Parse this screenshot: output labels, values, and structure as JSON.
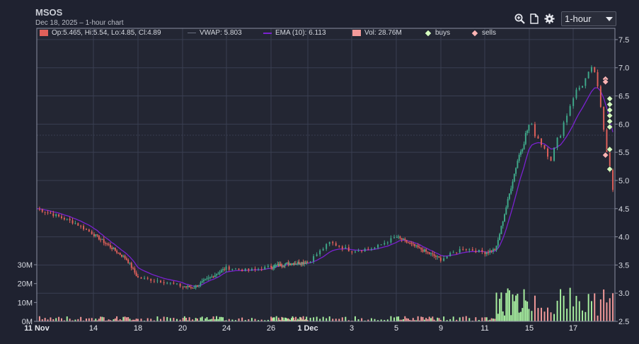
{
  "header": {
    "title": "MSOS",
    "subtitle": "Dec 18, 2025 – 1-hour chart"
  },
  "toolbar": {
    "zoom_icon": "zoom-in-icon",
    "export_icon": "document-icon",
    "settings_icon": "gear-icon",
    "interval": {
      "selected": "1-hour",
      "options": [
        "1-hour"
      ]
    }
  },
  "legend": {
    "ohlc": "Op:5.465, Hi:5.54, Lo:4.85, Cl:4.89",
    "vwap": "VWAP: 5.803",
    "ema": "EMA (10): 6.113",
    "vol": "Vol: 28.76M",
    "buys": "buys",
    "sells": "sells"
  },
  "colors": {
    "background": "#1f2230",
    "plot_background": "#232633",
    "grid": "#3a3f52",
    "up": "#3fa98a",
    "down": "#e0605a",
    "ema": "#7a22d0",
    "vwap": "#3a3f52",
    "vol_up": "#a8f0a0",
    "vol_down": "#f49a9a",
    "buy_marker": "#d6ffbf",
    "sell_marker": "#ffb4b4"
  },
  "chart_data": {
    "type": "candlestick",
    "title": "MSOS",
    "subtitle": "Dec 18, 2025 – 1-hour chart",
    "price_axis": {
      "side": "right",
      "range": [
        2.5,
        7.7
      ],
      "ticks": [
        "7.5",
        "7.0",
        "6.5",
        "6.0",
        "5.5",
        "5.0",
        "4.5",
        "4.0",
        "3.5",
        "3.0",
        "2.5"
      ]
    },
    "volume_axis": {
      "side": "left",
      "range_millions": [
        0,
        36
      ],
      "ticks": [
        "30M",
        "20M",
        "10M",
        "0M"
      ]
    },
    "x_ticks": [
      {
        "label": "11 Nov",
        "date": "2025-11-11",
        "bold": true
      },
      {
        "label": "14",
        "date": "2025-11-14",
        "bold": false
      },
      {
        "label": "18",
        "date": "2025-11-18",
        "bold": false
      },
      {
        "label": "20",
        "date": "2025-11-20",
        "bold": false
      },
      {
        "label": "24",
        "date": "2025-11-24",
        "bold": false
      },
      {
        "label": "26",
        "date": "2025-11-26",
        "bold": false
      },
      {
        "label": "1 Dec",
        "date": "2025-12-01",
        "bold": true
      },
      {
        "label": "3",
        "date": "2025-12-03",
        "bold": false
      },
      {
        "label": "5",
        "date": "2025-12-05",
        "bold": false
      },
      {
        "label": "9",
        "date": "2025-12-09",
        "bold": false
      },
      {
        "label": "11",
        "date": "2025-12-11",
        "bold": false
      },
      {
        "label": "15",
        "date": "2025-12-15",
        "bold": false
      },
      {
        "label": "17",
        "date": "2025-12-17",
        "bold": false
      }
    ],
    "close_path": [
      {
        "date": "2025-11-11",
        "price": 4.5
      },
      {
        "date": "2025-11-12",
        "price": 4.38
      },
      {
        "date": "2025-11-13",
        "price": 4.25
      },
      {
        "date": "2025-11-14",
        "price": 4.05
      },
      {
        "date": "2025-11-17",
        "price": 3.6
      },
      {
        "date": "2025-11-18",
        "price": 3.27
      },
      {
        "date": "2025-11-19",
        "price": 3.22
      },
      {
        "date": "2025-11-20",
        "price": 3.12
      },
      {
        "date": "2025-11-21",
        "price": 3.1
      },
      {
        "date": "2025-11-24",
        "price": 3.45
      },
      {
        "date": "2025-11-25",
        "price": 3.4
      },
      {
        "date": "2025-11-26",
        "price": 3.47
      },
      {
        "date": "2025-11-28",
        "price": 3.52
      },
      {
        "date": "2025-12-01",
        "price": 3.55
      },
      {
        "date": "2025-12-02",
        "price": 3.9
      },
      {
        "date": "2025-12-03",
        "price": 3.75
      },
      {
        "date": "2025-12-04",
        "price": 3.8
      },
      {
        "date": "2025-12-05",
        "price": 4.0
      },
      {
        "date": "2025-12-08",
        "price": 3.7
      },
      {
        "date": "2025-12-09",
        "price": 3.6
      },
      {
        "date": "2025-12-10",
        "price": 3.8
      },
      {
        "date": "2025-12-11",
        "price": 3.72
      },
      {
        "date": "2025-12-12",
        "price": 3.78
      },
      {
        "date": "2025-12-14",
        "price": 5.4
      },
      {
        "date": "2025-12-15",
        "price": 6.0
      },
      {
        "date": "2025-12-16",
        "price": 5.4
      },
      {
        "date": "2025-12-17",
        "price": 6.5
      },
      {
        "date": "2025-12-18",
        "price": 7.0
      },
      {
        "date": "2025-12-18",
        "price": 4.89
      }
    ],
    "ema_period": 10,
    "last_ohlc": {
      "open": 5.465,
      "high": 5.54,
      "low": 4.85,
      "close": 4.89,
      "vwap": 5.803,
      "ema10": 6.113,
      "volume": "28.76M"
    },
    "buy_markers": [
      {
        "date": "2025-12-18",
        "price": 6.45
      },
      {
        "date": "2025-12-18",
        "price": 6.35
      },
      {
        "date": "2025-12-18",
        "price": 6.25
      },
      {
        "date": "2025-12-18",
        "price": 6.15
      },
      {
        "date": "2025-12-18",
        "price": 6.05
      },
      {
        "date": "2025-12-18",
        "price": 5.95
      },
      {
        "date": "2025-12-18",
        "price": 5.55
      },
      {
        "date": "2025-12-18",
        "price": 5.2
      }
    ],
    "sell_markers": [
      {
        "date": "2025-12-18",
        "price": 6.8
      },
      {
        "date": "2025-12-18",
        "price": 6.75
      },
      {
        "date": "2025-12-18",
        "price": 5.45
      }
    ],
    "grid": true,
    "legend_placement": "top"
  }
}
